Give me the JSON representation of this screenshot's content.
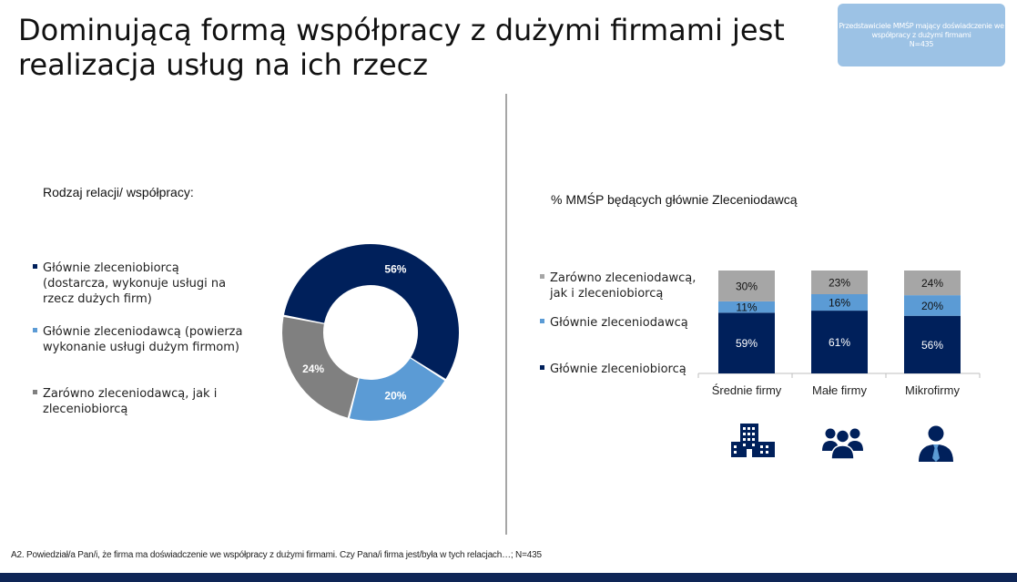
{
  "title": "Dominującą formą współpracy z dużymi firmami jest realizacja usług na ich rzecz",
  "badge": {
    "line1": "Przedstawiciele MMŚP mający doświadczenie we współpracy z dużymi firmami",
    "line2": "N=435"
  },
  "colors": {
    "dark_navy": "#00205b",
    "light_blue": "#5b9bd5",
    "gray": "#a6a6a6",
    "badge_bg": "#9cc2e5",
    "bottom_bar": "#0e2556"
  },
  "left_subtitle": "Rodzaj relacji/ współpracy:",
  "right_subtitle": "% MMŚP będących głównie Zleceniodawcą",
  "footnote": "A2. Powiedział/a Pan/i, że firma ma doświadczenie we współpracy z dużymi firmami. Czy Pana/i firma jest/była w tych relacjach…; N=435",
  "icons": [
    "building-icon",
    "group-icon",
    "person-icon"
  ],
  "chart_data": [
    {
      "type": "pie",
      "variant": "donut",
      "title": "Rodzaj relacji/ współpracy:",
      "slices": [
        {
          "label": "Głównie zleceniobiorcą (dostarcza, wykonuje usługi na rzecz dużych firm)",
          "value": 56,
          "display": "56%",
          "color": "#00205b"
        },
        {
          "label": "Głównie zleceniodawcą (powierza wykonanie usługi dużym firmom)",
          "value": 20,
          "display": "20%",
          "color": "#5b9bd5"
        },
        {
          "label": "Zarówno zleceniodawcą, jak i zleceniobiorcą",
          "value": 24,
          "display": "24%",
          "color": "#808080"
        }
      ],
      "legend": "left"
    },
    {
      "type": "bar",
      "stacked": true,
      "title": "% MMŚP będących głównie Zleceniodawcą",
      "categories": [
        "Średnie firmy",
        "Małe firmy",
        "Mikrofirmy"
      ],
      "series": [
        {
          "name": "Głównie zleceniobiorcą",
          "values": [
            59,
            61,
            56
          ],
          "labels": [
            "59%",
            "61%",
            "56%"
          ],
          "color": "#00205b"
        },
        {
          "name": "Głównie zleceniodawcą",
          "values": [
            11,
            16,
            20
          ],
          "labels": [
            "11%",
            "16%",
            "20%"
          ],
          "color": "#5b9bd5"
        },
        {
          "name": "Zarówno zleceniodawcą, jak i zleceniobiorcą",
          "values": [
            30,
            23,
            24
          ],
          "labels": [
            "30%",
            "23%",
            "24%"
          ],
          "color": "#a6a6a6"
        }
      ],
      "ylim": [
        0,
        100
      ],
      "legend": "left"
    }
  ]
}
